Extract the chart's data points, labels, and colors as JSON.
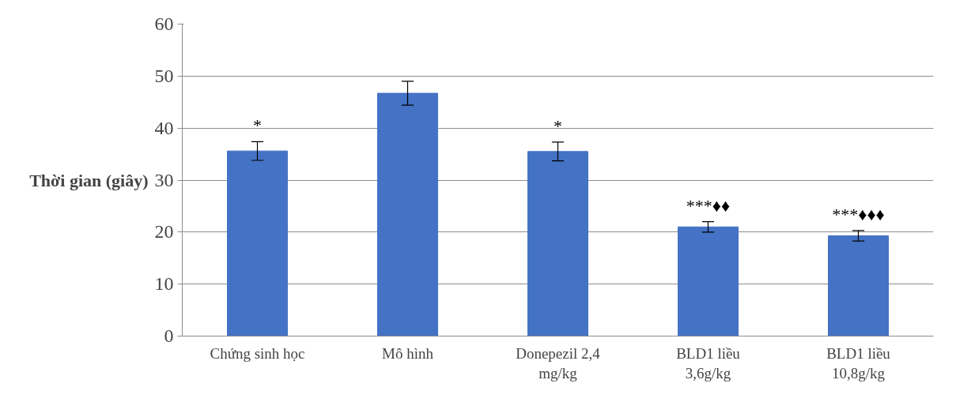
{
  "chart_data": {
    "type": "bar",
    "ylabel": "Thời gian (giây)",
    "categories": [
      "Chứng sinh học",
      "Mô hình",
      "Donepezil 2,4 mg/kg",
      "BLD1 liều 3,6g/kg",
      "BLD1 liều 10,8g/kg"
    ],
    "values": [
      35.6,
      46.7,
      35.5,
      21.0,
      19.3
    ],
    "errors": [
      1.8,
      2.3,
      1.8,
      1.0,
      1.0
    ],
    "color": "#4472c4",
    "ylim": [
      0,
      60
    ],
    "yticks": [
      0,
      10,
      20,
      30,
      40,
      50,
      60
    ],
    "grid": "y",
    "annotations": [
      {
        "text": "*",
        "x": "Chứng sinh học",
        "y": 35.6
      },
      {
        "text": "*",
        "x": "Donepezil 2,4 mg/kg",
        "y": 35.5
      },
      {
        "text": "***♦♦",
        "x": "BLD1 liều 3,6g/kg",
        "y": 21.0
      },
      {
        "text": "***♦♦♦",
        "x": "BLD1 liều 10,8g/kg",
        "y": 19.3
      }
    ]
  }
}
